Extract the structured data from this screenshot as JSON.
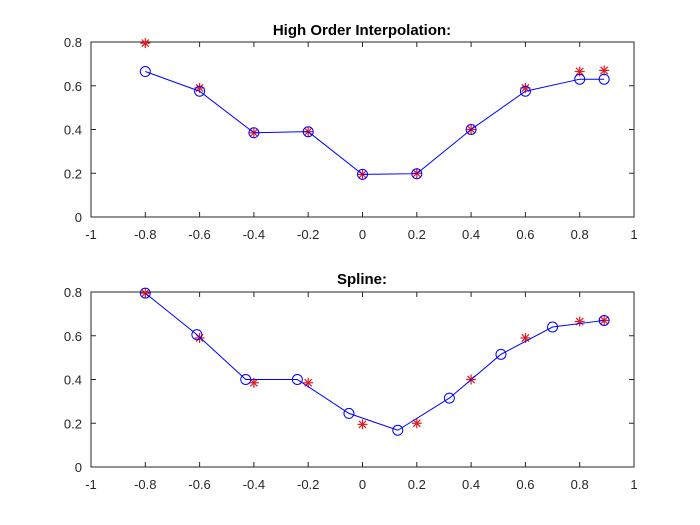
{
  "figure": {
    "background": "#ffffff"
  },
  "chart_data": [
    {
      "type": "line",
      "title": "High Order Interpolation:",
      "xlabel": "",
      "ylabel": "",
      "xlim": [
        -1,
        1
      ],
      "ylim": [
        0,
        0.8
      ],
      "xticks": [
        "-1",
        "-0.8",
        "-0.6",
        "-0.4",
        "-0.2",
        "0",
        "0.2",
        "0.4",
        "0.6",
        "0.8",
        "1"
      ],
      "yticks": [
        "0",
        "0.2",
        "0.4",
        "0.6",
        "0.8"
      ],
      "grid": false,
      "series": [
        {
          "style": "star-markers",
          "color": "#e31a1c",
          "x": [
            -0.8,
            -0.6,
            -0.4,
            -0.2,
            0.0,
            0.2,
            0.4,
            0.6,
            0.8,
            0.89
          ],
          "y": [
            0.795,
            0.59,
            0.385,
            0.39,
            0.195,
            0.2,
            0.4,
            0.59,
            0.665,
            0.67
          ]
        },
        {
          "style": "line-circle-markers",
          "color": "#0000ff",
          "x": [
            -0.8,
            -0.6,
            -0.4,
            -0.2,
            0.0,
            0.2,
            0.4,
            0.6,
            0.8,
            0.89
          ],
          "y": [
            0.665,
            0.575,
            0.385,
            0.39,
            0.195,
            0.198,
            0.4,
            0.575,
            0.63,
            0.63
          ]
        }
      ]
    },
    {
      "type": "line",
      "title": "Spline:",
      "xlabel": "",
      "ylabel": "",
      "xlim": [
        -1,
        1
      ],
      "ylim": [
        0,
        0.8
      ],
      "xticks": [
        "-1",
        "-0.8",
        "-0.6",
        "-0.4",
        "-0.2",
        "0",
        "0.2",
        "0.4",
        "0.6",
        "0.8",
        "1"
      ],
      "yticks": [
        "0",
        "0.2",
        "0.4",
        "0.6",
        "0.8"
      ],
      "grid": false,
      "series": [
        {
          "style": "star-markers",
          "color": "#e31a1c",
          "x": [
            -0.8,
            -0.6,
            -0.4,
            -0.2,
            0.0,
            0.2,
            0.4,
            0.6,
            0.8,
            0.89
          ],
          "y": [
            0.795,
            0.59,
            0.385,
            0.385,
            0.195,
            0.2,
            0.4,
            0.59,
            0.665,
            0.67
          ]
        },
        {
          "style": "line-circle-markers",
          "color": "#0000ff",
          "x": [
            -0.8,
            -0.61,
            -0.43,
            -0.24,
            -0.05,
            0.13,
            0.32,
            0.51,
            0.7,
            0.89
          ],
          "y": [
            0.795,
            0.605,
            0.4,
            0.4,
            0.245,
            0.168,
            0.315,
            0.515,
            0.64,
            0.67
          ]
        }
      ]
    }
  ]
}
